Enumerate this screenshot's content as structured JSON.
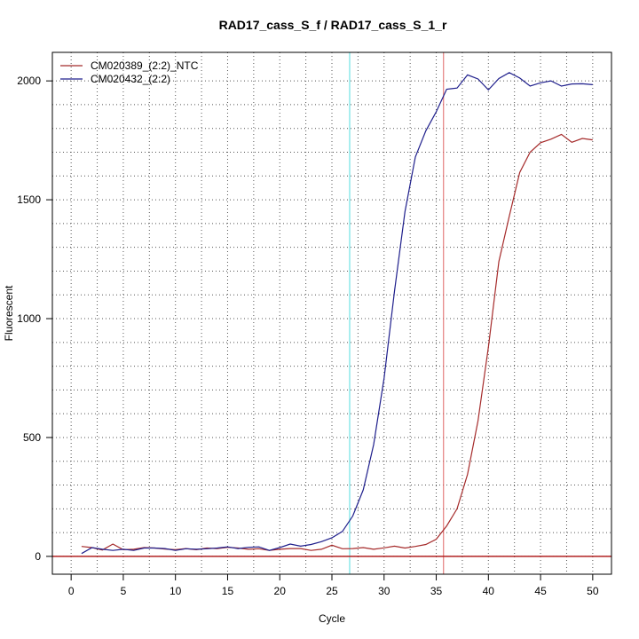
{
  "chart_data": {
    "type": "line",
    "title": "RAD17_cass_S_f / RAD17_cass_S_1_r",
    "xlabel": "Cycle",
    "ylabel": "Fluorescent",
    "xlim": [
      -1.8,
      51.8
    ],
    "ylim": [
      -75,
      2120
    ],
    "x_ticks": [
      0,
      5,
      10,
      15,
      20,
      25,
      30,
      35,
      40,
      45,
      50
    ],
    "y_ticks": [
      0,
      500,
      1000,
      1500,
      2000
    ],
    "grid": true,
    "legend_position": "top-left",
    "threshold": {
      "value": 0,
      "color": "#b22222"
    },
    "x": [
      1,
      2,
      3,
      4,
      5,
      6,
      7,
      8,
      9,
      10,
      11,
      12,
      13,
      14,
      15,
      16,
      17,
      18,
      19,
      20,
      21,
      22,
      23,
      24,
      25,
      26,
      27,
      28,
      29,
      30,
      31,
      32,
      33,
      34,
      35,
      36,
      37,
      38,
      39,
      40,
      41,
      42,
      43,
      44,
      45,
      46,
      47,
      48,
      49,
      50
    ],
    "series": [
      {
        "name": "CM020389_(2:2)_NTC",
        "color": "#a52a2a",
        "ct": 35.7,
        "values": [
          42,
          37,
          27,
          52,
          28,
          30,
          37,
          35,
          31,
          28,
          33,
          28,
          35,
          33,
          38,
          35,
          30,
          32,
          25,
          30,
          33,
          33,
          25,
          30,
          47,
          32,
          33,
          37,
          30,
          36,
          43,
          35,
          42,
          50,
          72,
          128,
          200,
          345,
          570,
          880,
          1240,
          1430,
          1615,
          1700,
          1740,
          1755,
          1775,
          1742,
          1758,
          1752
        ]
      },
      {
        "name": "CM020432_(2:2)",
        "color": "#1f1f8c",
        "ct": 26.7,
        "values": [
          12,
          37,
          30,
          25,
          30,
          25,
          35,
          35,
          33,
          25,
          32,
          30,
          32,
          35,
          40,
          33,
          38,
          40,
          25,
          37,
          52,
          43,
          50,
          62,
          78,
          105,
          170,
          280,
          470,
          750,
          1115,
          1450,
          1680,
          1790,
          1870,
          1965,
          1970,
          2025,
          2008,
          1962,
          2010,
          2035,
          2012,
          1978,
          1992,
          2000,
          1978,
          1987,
          1988,
          1984
        ]
      }
    ]
  }
}
